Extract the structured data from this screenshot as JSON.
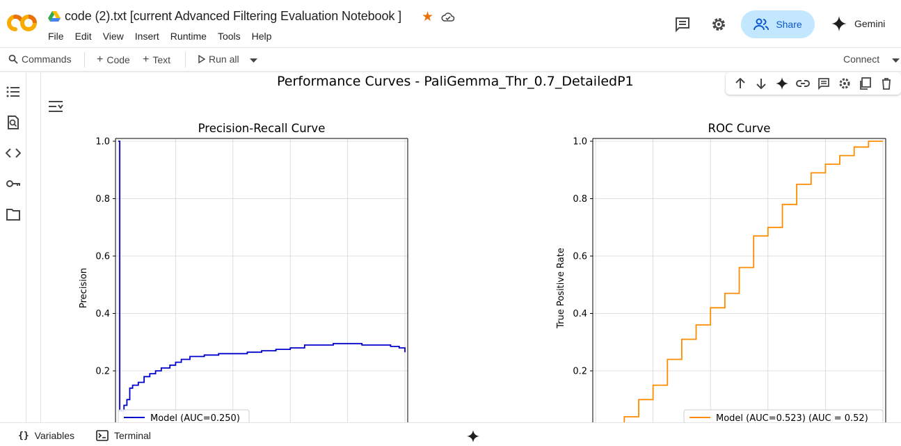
{
  "header": {
    "title": "code (2).txt [current Advanced Filtering Evaluation Notebook ]",
    "menu": [
      "File",
      "Edit",
      "View",
      "Insert",
      "Runtime",
      "Tools",
      "Help"
    ],
    "share_label": "Share",
    "gemini_label": "Gemini"
  },
  "toolbar": {
    "commands_label": "Commands",
    "code_label": "Code",
    "text_label": "Text",
    "run_all_label": "Run all",
    "connect_label": "Connect"
  },
  "bottombar": {
    "variables_label": "Variables",
    "terminal_label": "Terminal"
  },
  "colors": {
    "accent": "#0b57d0",
    "share_bg": "#c2e7ff",
    "star": "#e8710a",
    "pr_line": "#0000cc",
    "roc_line": "#ff8c00"
  },
  "figure": {
    "suptitle": "Performance Curves - PaliGemma_Thr_0.7_DetailedP1"
  },
  "chart_data": [
    {
      "type": "line",
      "title": "Precision-Recall Curve",
      "xlabel": "",
      "ylabel": "Precision",
      "yticks": [
        "0.2",
        "0.4",
        "0.6",
        "0.8",
        "1.0"
      ],
      "xlim": [
        0,
        1
      ],
      "ylim": [
        0,
        1.0
      ],
      "grid": true,
      "legend_position": "lower-left",
      "series": [
        {
          "name": "Model (AUC=0.250)",
          "x": [
            0.0,
            0.005,
            0.005,
            0.01,
            0.02,
            0.03,
            0.04,
            0.05,
            0.07,
            0.09,
            0.11,
            0.13,
            0.15,
            0.18,
            0.2,
            0.22,
            0.25,
            0.3,
            0.35,
            0.4,
            0.45,
            0.5,
            0.55,
            0.6,
            0.65,
            0.7,
            0.75,
            0.8,
            0.85,
            0.9,
            0.95,
            0.98,
            1.0
          ],
          "y": [
            1.0,
            1.0,
            0.06,
            0.06,
            0.08,
            0.1,
            0.14,
            0.15,
            0.16,
            0.18,
            0.19,
            0.2,
            0.21,
            0.22,
            0.23,
            0.24,
            0.25,
            0.255,
            0.26,
            0.26,
            0.265,
            0.27,
            0.275,
            0.28,
            0.29,
            0.29,
            0.295,
            0.295,
            0.29,
            0.29,
            0.285,
            0.28,
            0.265
          ]
        }
      ]
    },
    {
      "type": "line",
      "title": "ROC Curve",
      "xlabel": "",
      "ylabel": "True Positive Rate",
      "yticks": [
        "0.2",
        "0.4",
        "0.6",
        "0.8",
        "1.0"
      ],
      "xlim": [
        0,
        1
      ],
      "ylim": [
        0,
        1.0
      ],
      "grid": true,
      "legend_position": "lower-right",
      "series": [
        {
          "name": "Model (AUC=0.523) (AUC = 0.52)",
          "x": [
            0.05,
            0.1,
            0.15,
            0.2,
            0.25,
            0.3,
            0.35,
            0.4,
            0.45,
            0.5,
            0.55,
            0.6,
            0.65,
            0.7,
            0.75,
            0.8,
            0.85,
            0.9,
            0.95,
            0.98,
            1.0
          ],
          "y": [
            0.0,
            0.04,
            0.1,
            0.15,
            0.24,
            0.31,
            0.36,
            0.42,
            0.47,
            0.56,
            0.67,
            0.7,
            0.78,
            0.85,
            0.89,
            0.92,
            0.95,
            0.98,
            1.0,
            1.0,
            1.0
          ]
        }
      ]
    }
  ]
}
